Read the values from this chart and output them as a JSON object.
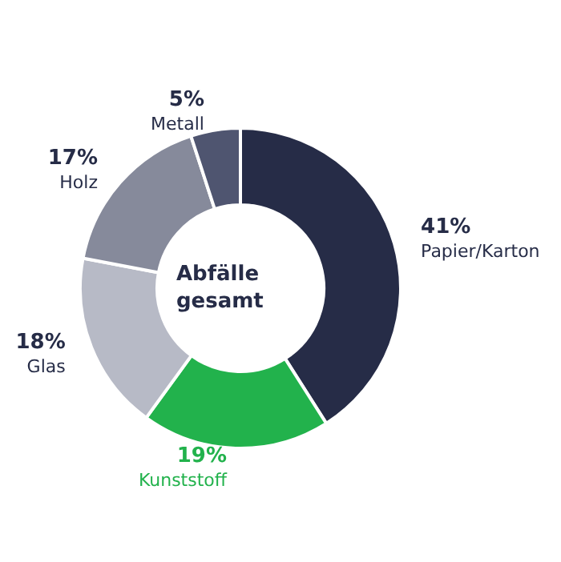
{
  "chart_data": {
    "type": "donut",
    "title": "Abfälle gesamt",
    "categories": [
      "Papier/Karton",
      "Kunststoff",
      "Glas",
      "Holz",
      "Metall"
    ],
    "values": [
      41,
      19,
      18,
      17,
      5
    ],
    "colors": [
      "#262c47",
      "#22b24c",
      "#b7bac6",
      "#868a9b",
      "#4f5570"
    ],
    "value_labels": [
      "41%",
      "19%",
      "18%",
      "17%",
      "5%"
    ],
    "legend": false
  }
}
